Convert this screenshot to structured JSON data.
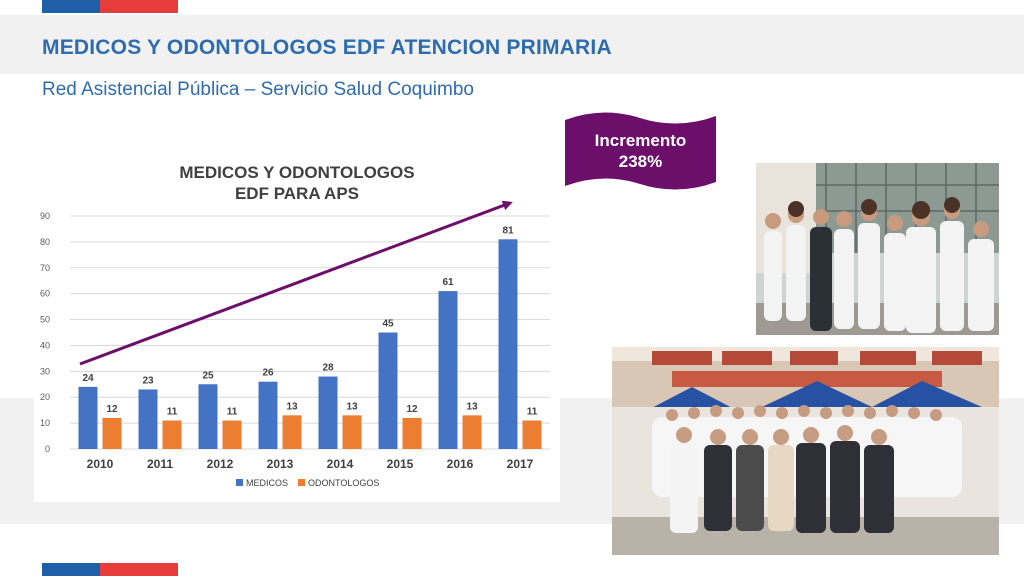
{
  "slide": {
    "title": "MEDICOS Y ODONTOLOGOS EDF ATENCION PRIMARIA",
    "subtitle": "Red Asistencial Pública – Servicio Salud Coquimbo"
  },
  "badge": {
    "line1": "Incremento",
    "line2": "238%",
    "color": "#6b0f6b"
  },
  "chart_data": {
    "type": "bar",
    "title": "MEDICOS Y ODONTOLOGOS EDF PARA APS",
    "title_lines": [
      "MEDICOS Y ODONTOLOGOS",
      "EDF PARA APS"
    ],
    "categories": [
      "2010",
      "2011",
      "2012",
      "2013",
      "2014",
      "2015",
      "2016",
      "2017"
    ],
    "series": [
      {
        "name": "MEDICOS",
        "color": "#4472c4",
        "values": [
          24,
          23,
          25,
          26,
          28,
          45,
          61,
          81
        ]
      },
      {
        "name": "ODONTOLOGOS",
        "color": "#ed7d31",
        "values": [
          12,
          11,
          11,
          13,
          13,
          12,
          13,
          11
        ]
      }
    ],
    "ylim": [
      0,
      90
    ],
    "yticks": [
      0,
      10,
      20,
      30,
      40,
      50,
      60,
      70,
      80,
      90
    ],
    "grid": true,
    "legend": "bottom",
    "trend_arrow_color": "#6b0f6b"
  },
  "colors": {
    "flag_blue": "#1f5fa8",
    "flag_red": "#e63c3c",
    "title_blue": "#2e6cb0"
  }
}
